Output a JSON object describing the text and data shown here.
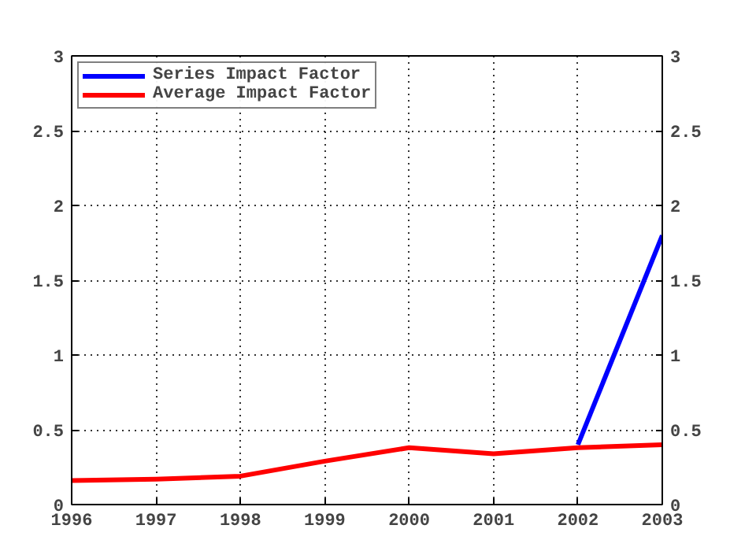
{
  "chart_data": {
    "type": "line",
    "x": [
      1996,
      1997,
      1998,
      1999,
      2000,
      2001,
      2002,
      2003
    ],
    "series": [
      {
        "name": "Series Impact Factor",
        "color": "#0000ff",
        "values": [
          null,
          null,
          null,
          null,
          null,
          null,
          0.4,
          1.8
        ]
      },
      {
        "name": "Average Impact Factor",
        "color": "#ff0000",
        "values": [
          0.16,
          0.17,
          0.19,
          0.29,
          0.38,
          0.34,
          0.38,
          0.4
        ]
      }
    ],
    "xlim": [
      1996,
      2003
    ],
    "xticks": [
      1996,
      1997,
      1998,
      1999,
      2000,
      2001,
      2002,
      2003
    ],
    "ylim": [
      0,
      3
    ],
    "yticks": [
      0,
      0.5,
      1,
      1.5,
      2,
      2.5,
      3
    ],
    "y2lim": [
      0,
      3
    ],
    "y2ticks": [
      0,
      0.5,
      1,
      1.5,
      2,
      2.5,
      3
    ],
    "grid": true,
    "legend": "top left",
    "marker": "none",
    "line_style": "solid"
  }
}
